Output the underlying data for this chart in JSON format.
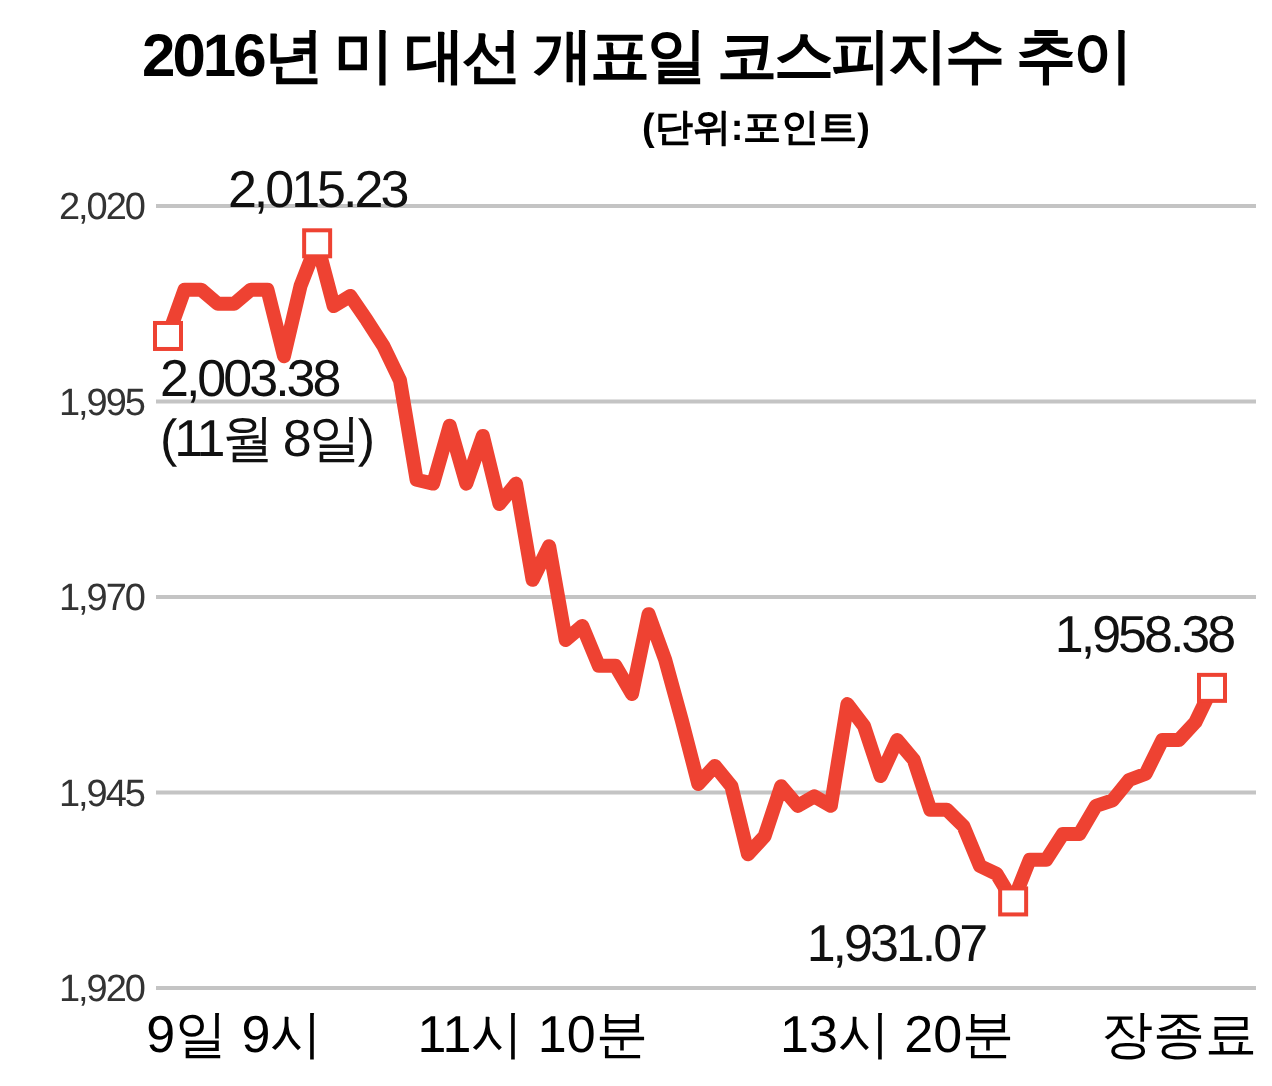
{
  "chart_data": {
    "type": "line",
    "title": "2016년 미 대선 개표일 코스피지수 추이",
    "subtitle": "(단위:포인트)",
    "categories": [
      null,
      null,
      null,
      null,
      "9일 9시",
      null,
      null,
      null,
      null,
      null,
      null,
      null,
      null,
      null,
      null,
      null,
      null,
      null,
      null,
      null,
      null,
      null,
      "11시 10분",
      null,
      null,
      null,
      null,
      null,
      null,
      null,
      null,
      null,
      null,
      null,
      null,
      null,
      null,
      null,
      null,
      null,
      null,
      null,
      null,
      null,
      "13시 20분",
      null,
      null,
      null,
      null,
      null,
      null,
      null,
      null,
      null,
      null,
      null,
      null,
      null,
      null,
      null,
      null,
      "장종료",
      null,
      null
    ],
    "series": [
      {
        "color": "#ee4232",
        "values": [
          2003.38,
          2009.3,
          2009.3,
          2007.5,
          2007.5,
          2009.3,
          2009.3,
          2000.8,
          2009.8,
          2015.23,
          2007.2,
          2008.5,
          2005.4,
          2002.1,
          1997.7,
          1985,
          1984.5,
          1991.9,
          1984.5,
          1990.6,
          1981.9,
          1984.5,
          1972.2,
          1976.5,
          1964.5,
          1966.3,
          1961.2,
          1961.2,
          1957.6,
          1967.8,
          1962,
          1954.3,
          1946.1,
          1948.4,
          1945.8,
          1937.1,
          1939.4,
          1945.8,
          1943.3,
          1944.5,
          1943.3,
          1956.3,
          1953.5,
          1947.1,
          1951.7,
          1949.2,
          1942.8,
          1942.8,
          1940.7,
          1935.6,
          1934.6,
          1931.07,
          1936.4,
          1936.4,
          1939.7,
          1939.7,
          1943.3,
          1944,
          1946.6,
          1947.4,
          1951.7,
          1951.7,
          1954,
          1958.38
        ],
        "value_labels": [
          "2,003.38\n(11월 8일)",
          null,
          null,
          null,
          null,
          null,
          null,
          null,
          null,
          "2,015.23",
          null,
          null,
          null,
          null,
          null,
          null,
          null,
          null,
          null,
          null,
          null,
          null,
          null,
          null,
          null,
          null,
          null,
          null,
          null,
          null,
          null,
          null,
          null,
          null,
          null,
          null,
          null,
          null,
          null,
          null,
          null,
          null,
          null,
          null,
          null,
          null,
          null,
          null,
          null,
          null,
          null,
          "1,931.07",
          null,
          null,
          null,
          null,
          null,
          null,
          null,
          null,
          null,
          null,
          null,
          "1,958.38"
        ]
      }
    ],
    "ylim": [
      1920,
      2020
    ],
    "yticks": [
      {
        "value": 1920,
        "label": "1,920"
      },
      {
        "value": 1945,
        "label": "1,945"
      },
      {
        "value": 1970,
        "label": "1,970"
      },
      {
        "value": 1995,
        "label": "1,995"
      },
      {
        "value": 2020,
        "label": "2,020"
      }
    ],
    "grid": "y"
  }
}
